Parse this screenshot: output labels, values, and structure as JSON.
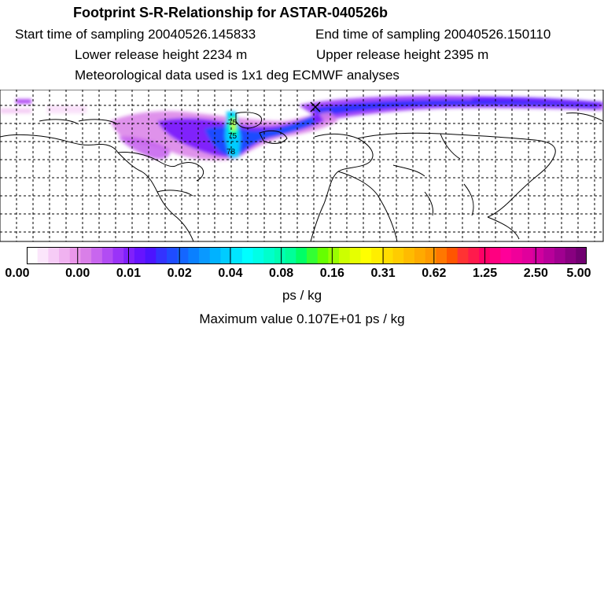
{
  "header": {
    "title": "Footprint S-R-Relationship for ASTAR-040526b",
    "start_time": "Start time of sampling 20040526.145833",
    "end_time": "End time of sampling 20040526.150110",
    "lower_height": "Lower release height 2234 m",
    "upper_height": "Upper release height 2395 m",
    "met_data": "Meteorological data used is 1x1 deg ECMWF analyses"
  },
  "map": {
    "labels": [
      "75",
      "75",
      "78"
    ]
  },
  "colorbar": {
    "tick_labels": [
      "0.00",
      "0.00",
      "0.01",
      "0.02",
      "0.04",
      "0.08",
      "0.16",
      "0.31",
      "0.62",
      "1.25",
      "2.50",
      "5.00"
    ],
    "colors": [
      "#ffffff",
      "#fbe6fb",
      "#f6ccf6",
      "#f0b2f0",
      "#ea97ea",
      "#d97fe8",
      "#c866ee",
      "#b24cf3",
      "#9a33f8",
      "#8020fb",
      "#6614ff",
      "#4c14ff",
      "#3333ff",
      "#1f4cff",
      "#1466ff",
      "#0a80ff",
      "#0a99ff",
      "#00b2ff",
      "#00ccff",
      "#00e6ff",
      "#00ffff",
      "#00ffe6",
      "#00ffcc",
      "#00ffb2",
      "#00ff99",
      "#00ff66",
      "#33ff33",
      "#66ff00",
      "#99ff00",
      "#ccff00",
      "#e6ff00",
      "#ffff00",
      "#ffee00",
      "#ffdd00",
      "#ffcc00",
      "#ffbb00",
      "#ffaa00",
      "#ff9900",
      "#ff7700",
      "#ff5500",
      "#ff3333",
      "#ff1a4c",
      "#ff0066",
      "#ff0080",
      "#ff0099",
      "#f0009a",
      "#e0009c",
      "#d0009e",
      "#b8009a",
      "#a00090",
      "#880080",
      "#700070"
    ],
    "unit": "ps / kg",
    "max_value": "Maximum value  0.107E+01 ps / kg"
  }
}
